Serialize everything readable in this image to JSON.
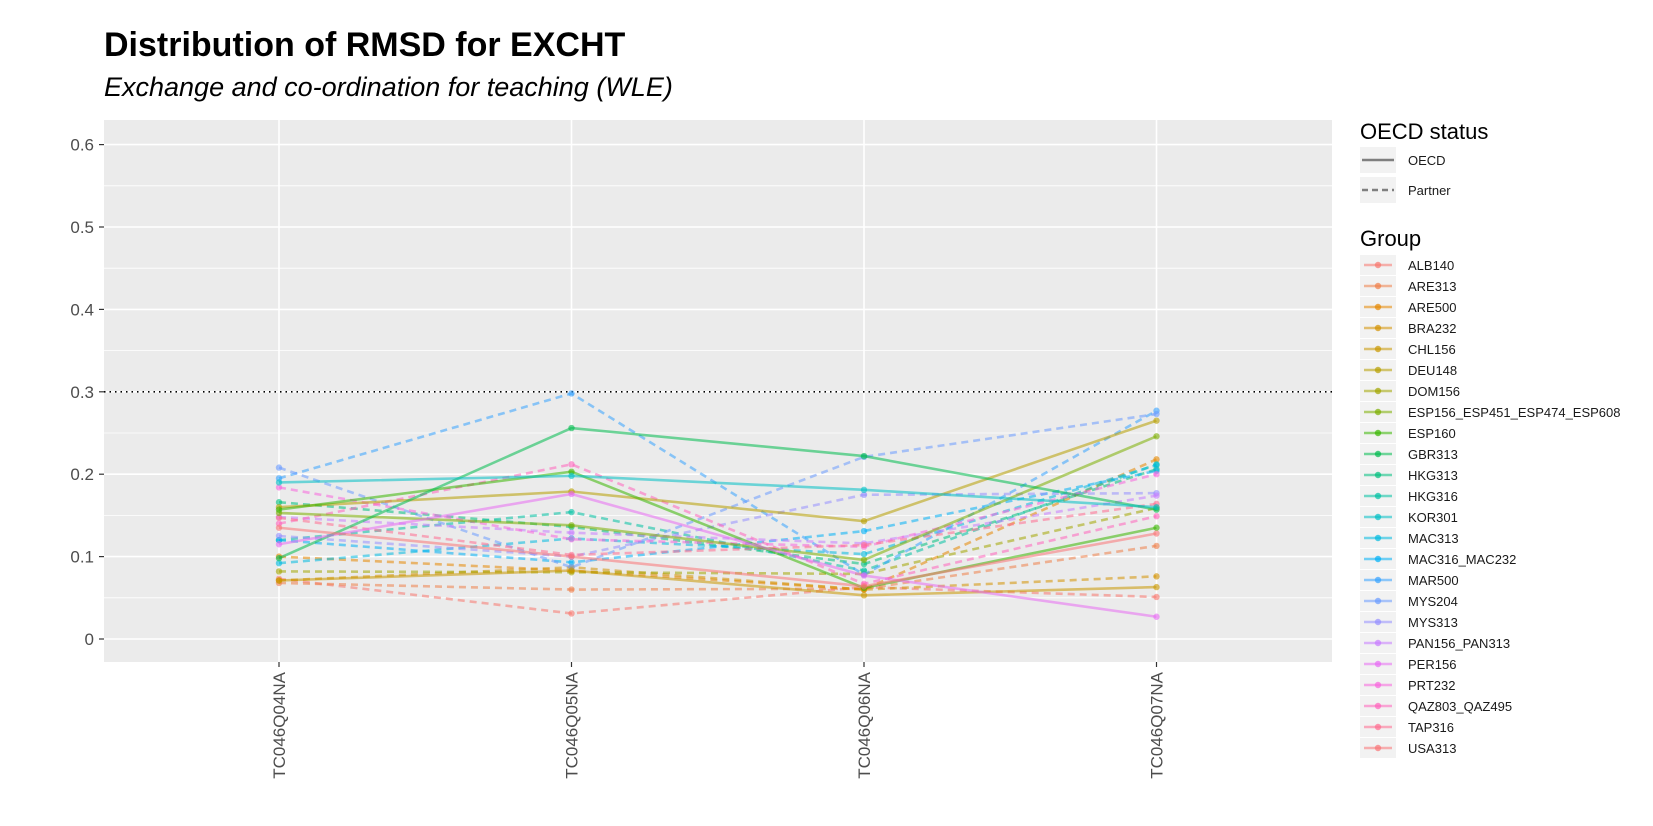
{
  "chart_data": {
    "type": "line",
    "title": "Distribution of RMSD for EXCHT",
    "subtitle": "Exchange and co-ordination for teaching (WLE)",
    "categories": [
      "TC046Q04NA",
      "TC046Q05NA",
      "TC046Q06NA",
      "TC046Q07NA"
    ],
    "yticks": [
      "0",
      "0.1",
      "0.2",
      "0.3",
      "0.4",
      "0.5",
      "0.6"
    ],
    "ylim": [
      -0.03,
      0.63
    ],
    "reference_line": 0.3,
    "grid": true,
    "legend_position": "right",
    "linetype_legend": {
      "title": "OECD status",
      "items": [
        {
          "label": "OECD",
          "dash": "solid"
        },
        {
          "label": "Partner",
          "dash": "dashed"
        }
      ]
    },
    "group_legend_title": "Group",
    "series": [
      {
        "name": "ALB140",
        "color": "#F8766D",
        "status": "Partner",
        "values": [
          0.073,
          0.031,
          0.063,
          0.051
        ]
      },
      {
        "name": "ARE313",
        "color": "#EF7F49",
        "status": "Partner",
        "values": [
          0.068,
          0.06,
          0.061,
          0.113
        ]
      },
      {
        "name": "ARE500",
        "color": "#E58700",
        "status": "Partner",
        "values": [
          0.1,
          0.083,
          0.06,
          0.218
        ]
      },
      {
        "name": "BRA232",
        "color": "#D39200",
        "status": "Partner",
        "values": [
          0.071,
          0.087,
          0.06,
          0.076
        ]
      },
      {
        "name": "CHL156",
        "color": "#C99800",
        "status": "OECD",
        "values": [
          0.071,
          0.083,
          0.053,
          0.063
        ]
      },
      {
        "name": "DEU148",
        "color": "#B79F00",
        "status": "OECD",
        "values": [
          0.16,
          0.179,
          0.143,
          0.265
        ]
      },
      {
        "name": "DOM156",
        "color": "#A3A500",
        "status": "Partner",
        "values": [
          0.082,
          0.081,
          0.079,
          0.159
        ]
      },
      {
        "name": "ESP156_ESP451_ESP474_ESP608",
        "color": "#7CAE00",
        "status": "OECD",
        "values": [
          0.153,
          0.138,
          0.096,
          0.246
        ]
      },
      {
        "name": "ESP160",
        "color": "#39B600",
        "status": "OECD",
        "values": [
          0.157,
          0.203,
          0.062,
          0.135
        ]
      },
      {
        "name": "GBR313",
        "color": "#00BB4E",
        "status": "OECD",
        "values": [
          0.098,
          0.256,
          0.222,
          0.157
        ]
      },
      {
        "name": "HKG313",
        "color": "#00BF7D",
        "status": "Partner",
        "values": [
          0.166,
          0.136,
          0.091,
          0.206
        ]
      },
      {
        "name": "HKG316",
        "color": "#00C1A3",
        "status": "Partner",
        "values": [
          0.12,
          0.154,
          0.083,
          0.212
        ]
      },
      {
        "name": "KOR301",
        "color": "#00BFC4",
        "status": "OECD",
        "values": [
          0.19,
          0.198,
          0.181,
          0.16
        ]
      },
      {
        "name": "MAC313",
        "color": "#00BAE0",
        "status": "Partner",
        "values": [
          0.092,
          0.122,
          0.103,
          0.211
        ]
      },
      {
        "name": "MAC316_MAC232",
        "color": "#00B0F6",
        "status": "Partner",
        "values": [
          0.12,
          0.093,
          0.131,
          0.204
        ]
      },
      {
        "name": "MAR500",
        "color": "#35A2FF",
        "status": "Partner",
        "values": [
          0.195,
          0.298,
          0.078,
          0.277
        ]
      },
      {
        "name": "MYS204",
        "color": "#6A9BFF",
        "status": "Partner",
        "values": [
          0.208,
          0.087,
          0.221,
          0.273
        ]
      },
      {
        "name": "MYS313",
        "color": "#9590FF",
        "status": "Partner",
        "values": [
          0.125,
          0.1,
          0.175,
          0.177
        ]
      },
      {
        "name": "PAN156_PAN313",
        "color": "#C77CFF",
        "status": "Partner",
        "values": [
          0.148,
          0.129,
          0.116,
          0.174
        ]
      },
      {
        "name": "PER156",
        "color": "#E76BF3",
        "status": "OECD",
        "values": [
          0.115,
          0.176,
          0.077,
          0.027
        ]
      },
      {
        "name": "PRT232",
        "color": "#F865DD",
        "status": "Partner",
        "values": [
          0.184,
          0.121,
          0.112,
          0.2
        ]
      },
      {
        "name": "QAZ803_QAZ495",
        "color": "#FF62BC",
        "status": "Partner",
        "values": [
          0.14,
          0.212,
          0.067,
          0.149
        ]
      },
      {
        "name": "TAP316",
        "color": "#FF6C90",
        "status": "Partner",
        "values": [
          0.147,
          0.102,
          0.114,
          0.164
        ]
      },
      {
        "name": "USA313",
        "color": "#FA7476",
        "status": "OECD",
        "values": [
          0.135,
          0.1,
          0.064,
          0.128
        ]
      }
    ]
  }
}
